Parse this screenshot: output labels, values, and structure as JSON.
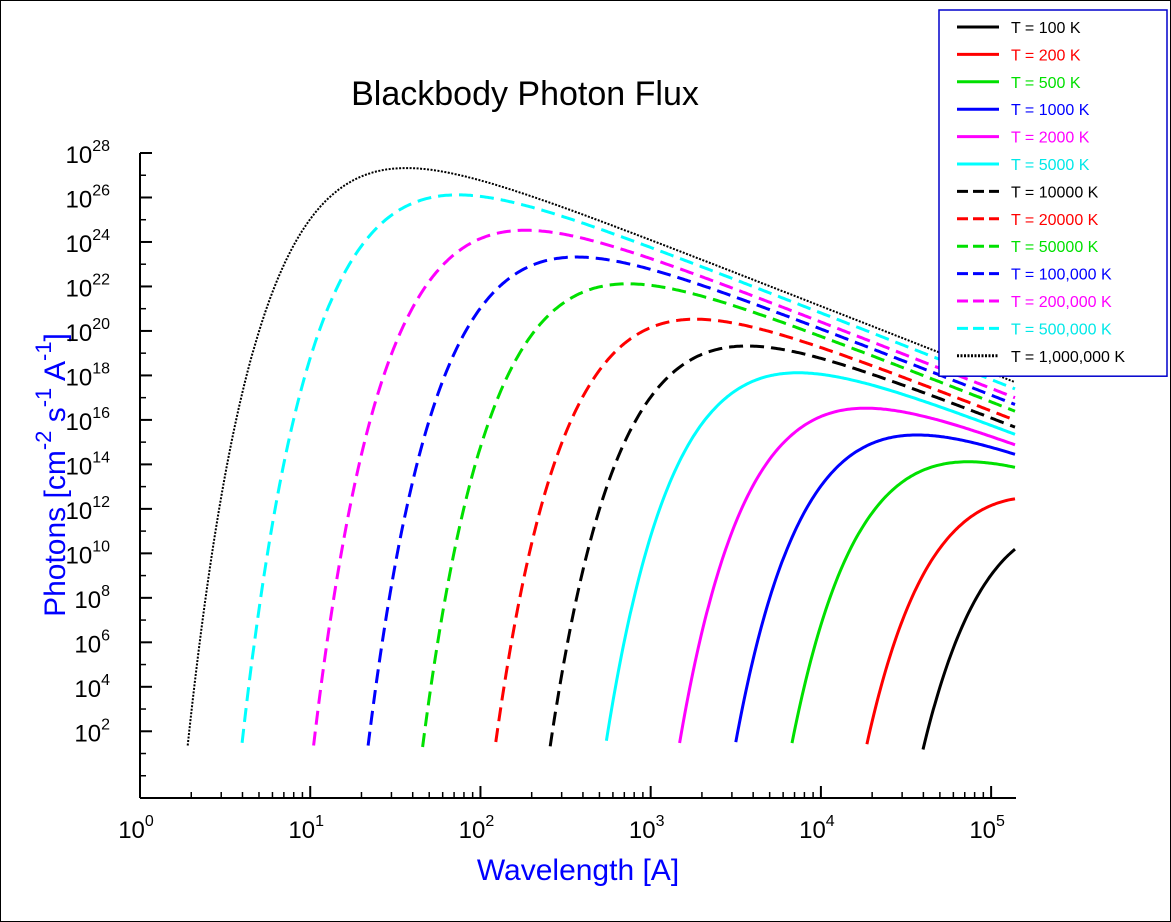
{
  "chart_data": {
    "type": "line",
    "title": "Blackbody Photon Flux",
    "xlabel": "Wavelength [A]",
    "ylabel": "Photons [cm-2 s-1 A-1]",
    "x_scale": "log",
    "y_scale": "log",
    "xlim": [
      1,
      140000
    ],
    "ylim": [
      0.1,
      1e+28
    ],
    "x_ticks": [
      1,
      10,
      100,
      1000,
      10000,
      100000
    ],
    "y_ticks": [
      100,
      10000.0,
      1000000.0,
      100000000.0,
      10000000000.0,
      1000000000000.0,
      100000000000000.0,
      1e+16,
      1e+18,
      1e+20,
      1e+22,
      1e+24,
      1e+26,
      1e+28
    ],
    "grid": false,
    "legend_position": "top-right",
    "colors": {
      "black": "#000000",
      "red": "#ff0000",
      "green": "#00e000",
      "blue": "#0000ff",
      "magenta": "#ff00ff",
      "cyan": "#00ffff",
      "axis_label": "#0000ff"
    },
    "series": [
      {
        "name": "T = 100 K",
        "color": "#000000",
        "style": "solid"
      },
      {
        "name": "T = 200 K",
        "color": "#ff0000",
        "style": "solid"
      },
      {
        "name": "T = 500 K",
        "color": "#00e000",
        "style": "solid"
      },
      {
        "name": "T = 1000 K",
        "color": "#0000ff",
        "style": "solid"
      },
      {
        "name": "T = 2000 K",
        "color": "#ff00ff",
        "style": "solid"
      },
      {
        "name": "T = 5000 K",
        "color": "#00ffff",
        "style": "solid"
      },
      {
        "name": "T = 10000 K",
        "color": "#000000",
        "style": "dashed"
      },
      {
        "name": "T = 20000 K",
        "color": "#ff0000",
        "style": "dashed"
      },
      {
        "name": "T = 50000 K",
        "color": "#00e000",
        "style": "dashed"
      },
      {
        "name": "T = 100,000 K",
        "color": "#0000ff",
        "style": "dashed"
      },
      {
        "name": "T = 200,000 K",
        "color": "#ff00ff",
        "style": "dashed"
      },
      {
        "name": "T = 500,000 K",
        "color": "#00ffff",
        "style": "dashed"
      },
      {
        "name": "T = 1,000,000 K",
        "color": "#000000",
        "style": "dotted"
      }
    ]
  }
}
